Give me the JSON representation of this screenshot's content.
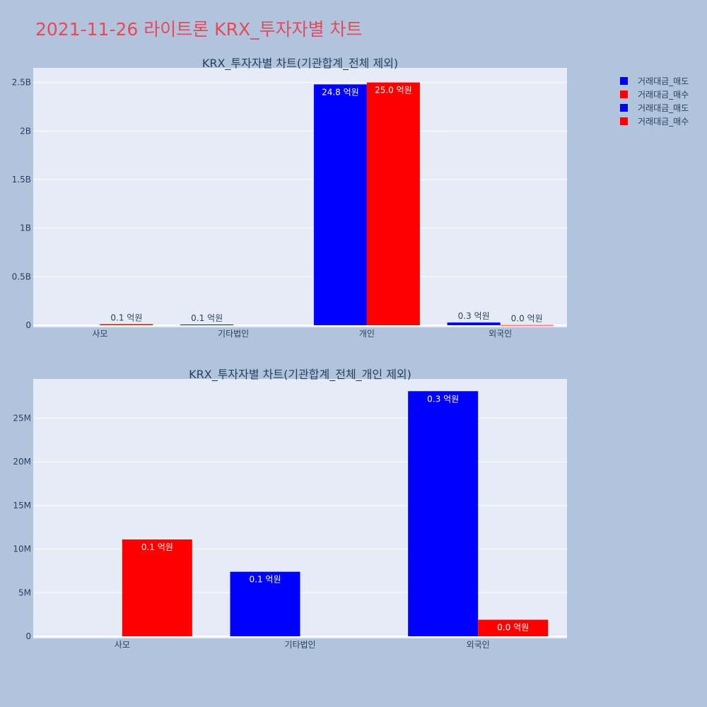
{
  "page": {
    "title": "2021-11-26 라이트론 KRX_투자자별 차트"
  },
  "legend": {
    "items": [
      {
        "label": "거래대금_매도",
        "color": "#0000ff"
      },
      {
        "label": "거래대금_매수",
        "color": "#ff0000"
      },
      {
        "label": "거래대금_매도",
        "color": "#0000ff"
      },
      {
        "label": "거래대금_매수",
        "color": "#ff0000"
      }
    ]
  },
  "chart_data": [
    {
      "type": "bar",
      "title": "KRX_투자자별 차트(기관합계_전체 제외)",
      "categories": [
        "사모",
        "기타법인",
        "개인",
        "외국인"
      ],
      "ylim": [
        0,
        2650000000
      ],
      "yticks": [
        0,
        500000000,
        1000000000,
        1500000000,
        2000000000,
        2500000000
      ],
      "ytick_labels": [
        "0",
        "0.5B",
        "1B",
        "1.5B",
        "2B",
        "2.5B"
      ],
      "grid": true,
      "series": [
        {
          "name": "거래대금_매도",
          "color": "#0000ff",
          "values": [
            0,
            7000000,
            2480000000,
            28000000
          ],
          "labels": [
            "",
            "0.1 억원",
            "24.8 억원",
            "0.3 억원"
          ]
        },
        {
          "name": "거래대금_매수",
          "color": "#ff0000",
          "values": [
            11000000,
            0,
            2500000000,
            2000000
          ],
          "labels": [
            "0.1 억원",
            "",
            "25.0 억원",
            "0.0 억원"
          ]
        }
      ]
    },
    {
      "type": "bar",
      "title": "KRX_투자자별 차트(기관합계_전체_개인 제외)",
      "categories": [
        "사모",
        "기타법인",
        "외국인"
      ],
      "ylim": [
        0,
        29500000
      ],
      "yticks": [
        0,
        5000000,
        10000000,
        15000000,
        20000000,
        25000000
      ],
      "ytick_labels": [
        "0",
        "5M",
        "10M",
        "15M",
        "20M",
        "25M"
      ],
      "grid": true,
      "series": [
        {
          "name": "거래대금_매도",
          "color": "#0000ff",
          "values": [
            0,
            7400000,
            28100000
          ],
          "labels": [
            "",
            "0.1 억원",
            "0.3 억원"
          ]
        },
        {
          "name": "거래대금_매수",
          "color": "#ff0000",
          "values": [
            11100000,
            0,
            1900000
          ],
          "labels": [
            "0.1 억원",
            "",
            "0.0 억원"
          ]
        }
      ]
    }
  ]
}
